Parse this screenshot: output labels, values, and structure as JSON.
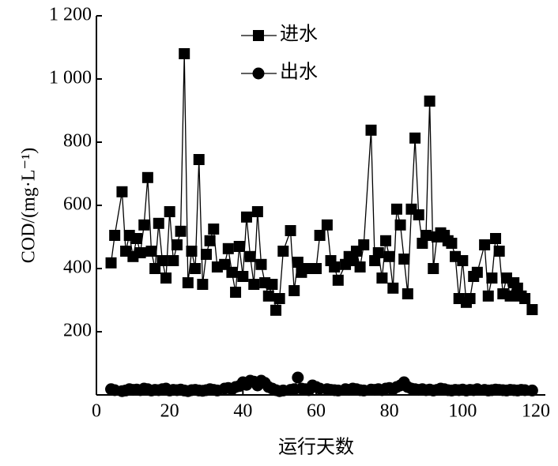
{
  "chart_data": {
    "type": "line",
    "x": [
      4,
      5,
      7,
      8,
      9,
      10,
      11,
      12,
      13,
      14,
      15,
      16,
      17,
      18,
      19,
      20,
      21,
      22,
      23,
      24,
      25,
      26,
      27,
      28,
      29,
      30,
      31,
      32,
      33,
      35,
      36,
      37,
      38,
      39,
      40,
      41,
      42,
      43,
      44,
      45,
      46,
      47,
      48,
      49,
      50,
      51,
      53,
      54,
      55,
      56,
      57,
      58,
      59,
      60,
      61,
      63,
      64,
      65,
      66,
      68,
      69,
      70,
      71,
      72,
      73,
      75,
      76,
      77,
      78,
      79,
      80,
      81,
      82,
      83,
      84,
      85,
      86,
      87,
      88,
      89,
      90,
      91,
      92,
      93,
      94,
      95,
      96,
      97,
      98,
      99,
      100,
      101,
      102,
      103,
      104,
      106,
      107,
      108,
      109,
      110,
      111,
      112,
      113,
      114,
      115,
      116,
      117,
      119
    ],
    "series": [
      {
        "name": "进水",
        "color": "#000000",
        "marker": "square",
        "values": [
          418,
          505,
          643,
          455,
          505,
          438,
          495,
          450,
          538,
          688,
          455,
          400,
          543,
          425,
          370,
          580,
          425,
          475,
          518,
          1080,
          355,
          455,
          400,
          745,
          350,
          445,
          488,
          525,
          405,
          413,
          463,
          388,
          325,
          470,
          375,
          563,
          438,
          350,
          580,
          413,
          355,
          313,
          350,
          268,
          305,
          455,
          520,
          330,
          420,
          388,
          400,
          400,
          400,
          400,
          505,
          538,
          425,
          405,
          363,
          413,
          438,
          425,
          455,
          405,
          475,
          838,
          425,
          450,
          370,
          488,
          438,
          338,
          588,
          538,
          430,
          320,
          588,
          813,
          570,
          480,
          505,
          930,
          400,
          500,
          513,
          505,
          488,
          480,
          438,
          305,
          425,
          293,
          305,
          375,
          388,
          475,
          313,
          370,
          495,
          455,
          320,
          370,
          313,
          355,
          338,
          313,
          305,
          270
        ]
      },
      {
        "name": "出水",
        "color": "#000000",
        "marker": "circle",
        "values": [
          18,
          15,
          12,
          14,
          18,
          16,
          17,
          15,
          20,
          18,
          14,
          16,
          15,
          18,
          20,
          14,
          16,
          15,
          17,
          14,
          12,
          15,
          16,
          14,
          13,
          15,
          18,
          16,
          14,
          20,
          22,
          18,
          25,
          28,
          40,
          32,
          45,
          42,
          30,
          45,
          38,
          25,
          20,
          15,
          12,
          14,
          16,
          18,
          55,
          20,
          18,
          15,
          30,
          25,
          20,
          18,
          16,
          15,
          14,
          18,
          16,
          20,
          18,
          15,
          14,
          17,
          16,
          18,
          15,
          20,
          22,
          18,
          25,
          30,
          40,
          25,
          20,
          18,
          16,
          18,
          15,
          17,
          14,
          16,
          20,
          18,
          15,
          14,
          16,
          15,
          17,
          14,
          16,
          15,
          18,
          16,
          14,
          15,
          17,
          16,
          15,
          14,
          16,
          15,
          14,
          16,
          15,
          14
        ]
      }
    ],
    "xlim": [
      0,
      120
    ],
    "xticks": [
      0,
      20,
      40,
      60,
      80,
      100,
      120
    ],
    "ylim": [
      0,
      1200
    ],
    "yticks": [
      200,
      400,
      600,
      800,
      {
        "value": 1000,
        "label": "1 000"
      },
      {
        "value": 1200,
        "label": "1 200"
      }
    ],
    "xlabel": "运行天数",
    "ylabel": "COD/(mg·L⁻¹)",
    "legend": "top-left"
  }
}
